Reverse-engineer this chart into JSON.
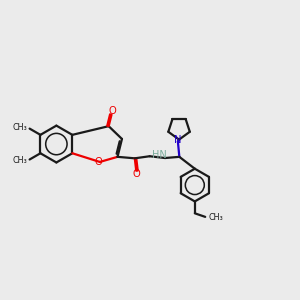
{
  "bg_color": "#ebebeb",
  "bond_color": "#1a1a1a",
  "O_color": "#ee0000",
  "N_color": "#2200cc",
  "H_color": "#7aaa9a",
  "lw": 1.6,
  "figsize": [
    3.0,
    3.0
  ],
  "dpi": 100,
  "xlim": [
    0,
    10
  ],
  "ylim": [
    0,
    10
  ]
}
